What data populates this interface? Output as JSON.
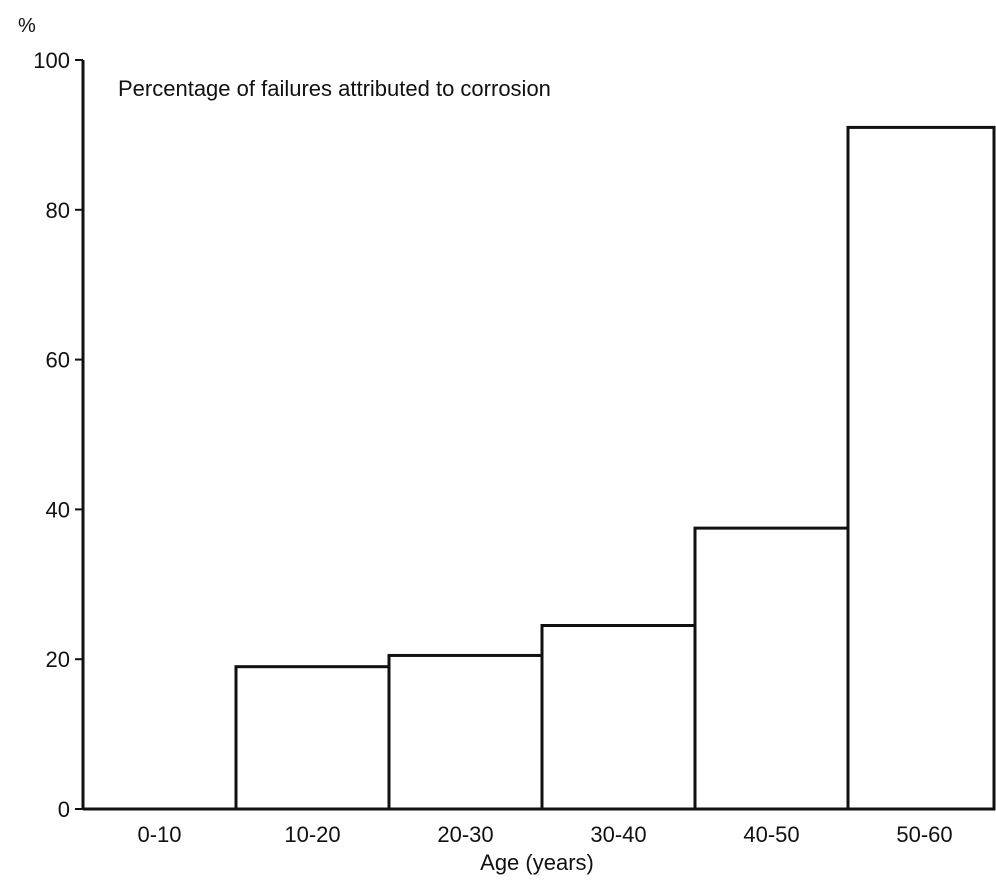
{
  "chart_data": {
    "type": "bar",
    "title": "Percentage of failures attributed to corrosion",
    "xlabel": "Age (years)",
    "ylabel": "%",
    "categories": [
      "0-10",
      "10-20",
      "20-30",
      "30-40",
      "40-50",
      "50-60"
    ],
    "values": [
      0,
      19,
      20.5,
      24.5,
      37.5,
      91
    ],
    "ylim": [
      0,
      100
    ],
    "yticks": [
      0,
      20,
      40,
      60,
      80,
      100
    ],
    "grid": false,
    "legend": "none",
    "colors": {
      "bar_fill": "#ffffff",
      "bar_stroke": "#111111",
      "axis": "#111111"
    }
  }
}
